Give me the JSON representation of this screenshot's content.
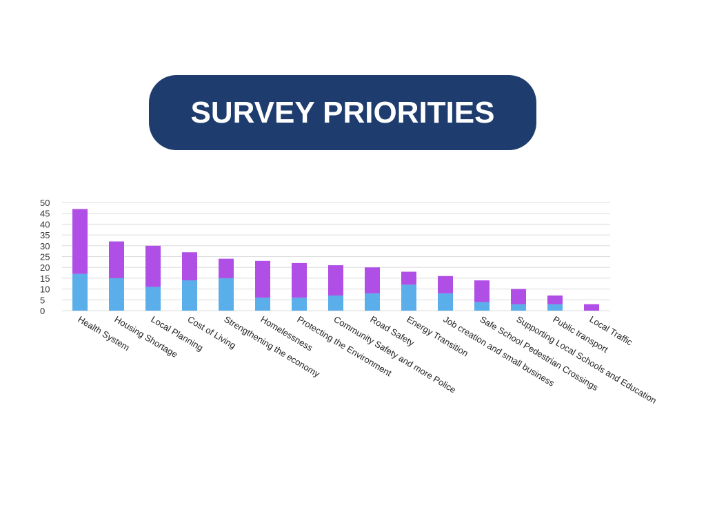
{
  "title": "SURVEY PRIORITIES",
  "colors": {
    "title_bg": "#1e3d6e",
    "series_bottom": "#5aaeea",
    "series_top": "#b04fe6",
    "grid": "#dcdcdc"
  },
  "chart_data": {
    "type": "bar",
    "stacked": true,
    "title": "",
    "xlabel": "",
    "ylabel": "",
    "ylim": [
      0,
      50
    ],
    "yticks": [
      0,
      5,
      10,
      15,
      20,
      25,
      30,
      35,
      40,
      45,
      50
    ],
    "grid": true,
    "legend": "none",
    "categories": [
      "Health System",
      "Housing Shortage",
      "Local Planning",
      "Cost of Living",
      "Strengthening the economy",
      "Homelessness",
      "Protecting the Environment",
      "Community Safety and more Police",
      "Road Safety",
      "Energy Transition",
      "Job creation and small business",
      "Safe School Pedestrian Crossings",
      "Supporting Local Schools and Education",
      "Public transport",
      "Local Traffic"
    ],
    "series": [
      {
        "values": [
          17,
          15,
          11,
          14,
          15,
          6,
          6,
          7,
          8,
          12,
          8,
          4,
          3,
          3,
          0
        ]
      },
      {
        "values": [
          30,
          17,
          19,
          13,
          9,
          17,
          16,
          14,
          12,
          6,
          8,
          10,
          7,
          4,
          3
        ]
      }
    ]
  }
}
